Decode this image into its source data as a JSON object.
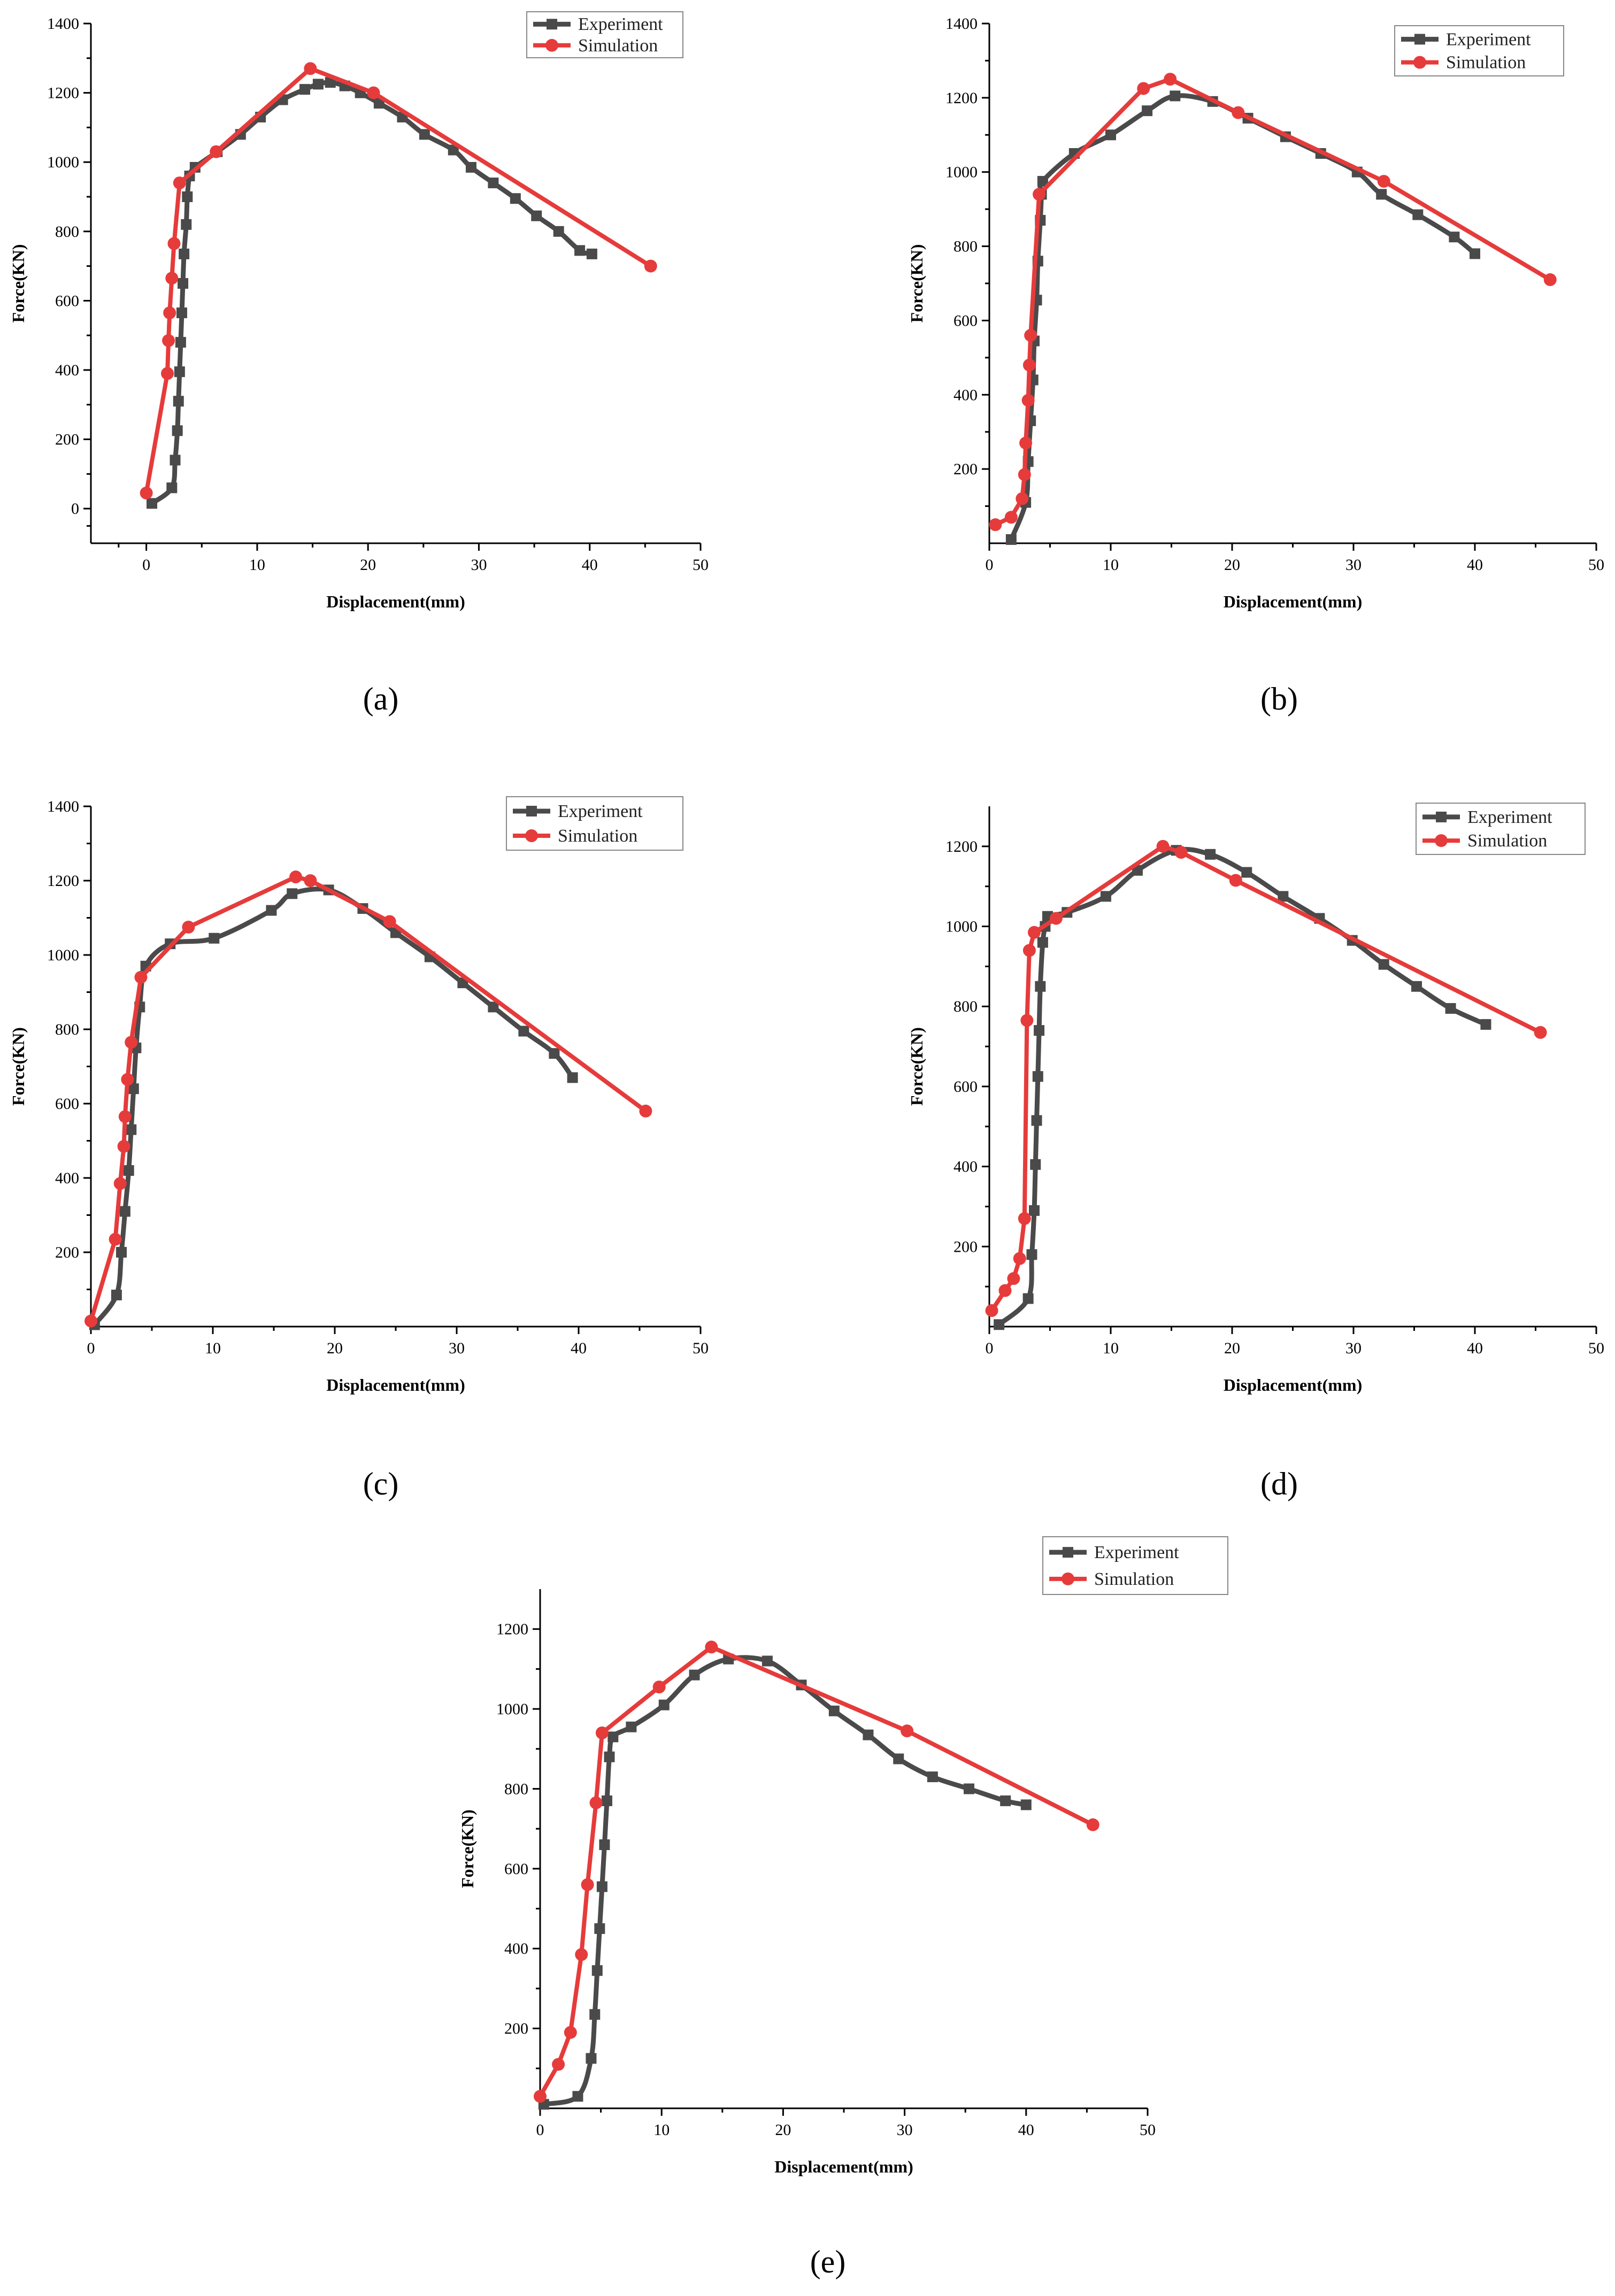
{
  "figure": {
    "colors": {
      "experiment": "#4a4a4a",
      "simulation": "#e63b3b"
    }
  },
  "chart_data": [
    {
      "id": "a",
      "type": "line",
      "panel_label": "(a)",
      "xlabel": "Displacement(mm)",
      "ylabel": "Force(KN)",
      "xlim": [
        -5,
        50
      ],
      "ylim": [
        -100,
        1400
      ],
      "xticks": [
        0,
        10,
        20,
        30,
        40,
        50
      ],
      "yticks": [
        0,
        200,
        400,
        600,
        800,
        1000,
        1200,
        1400
      ],
      "legend": [
        "Experiment",
        "Simulation"
      ],
      "legend_position": "top-right",
      "series": [
        {
          "name": "Experiment",
          "marker": "square",
          "x": [
            0.5,
            2.3,
            2.6,
            2.8,
            2.9,
            3.0,
            3.1,
            3.2,
            3.3,
            3.4,
            3.6,
            3.7,
            3.9,
            4.4,
            6.4,
            8.5,
            10.3,
            12.3,
            14.3,
            15.5,
            16.6,
            17.9,
            19.3,
            21.0,
            23.1,
            25.1,
            27.7,
            29.3,
            31.3,
            33.3,
            35.2,
            37.2,
            39.1,
            40.2
          ],
          "y": [
            15,
            60,
            140,
            225,
            310,
            395,
            480,
            565,
            650,
            735,
            820,
            900,
            960,
            985,
            1030,
            1080,
            1130,
            1180,
            1210,
            1225,
            1230,
            1220,
            1200,
            1170,
            1130,
            1080,
            1035,
            985,
            940,
            895,
            845,
            800,
            745,
            735
          ]
        },
        {
          "name": "Simulation",
          "marker": "circle",
          "x": [
            0.0,
            1.9,
            2.0,
            2.1,
            2.3,
            2.5,
            3.0,
            6.3,
            14.8,
            20.5,
            45.5
          ],
          "y": [
            45,
            390,
            485,
            565,
            665,
            765,
            940,
            1030,
            1270,
            1200,
            700
          ]
        }
      ]
    },
    {
      "id": "b",
      "type": "line",
      "panel_label": "(b)",
      "xlabel": "Displacement(mm)",
      "ylabel": "Force(KN)",
      "xlim": [
        0,
        50
      ],
      "ylim": [
        0,
        1400
      ],
      "xticks": [
        0,
        10,
        20,
        30,
        40,
        50
      ],
      "yticks": [
        200,
        400,
        600,
        800,
        1000,
        1200,
        1400
      ],
      "legend": [
        "Experiment",
        "Simulation"
      ],
      "legend_position": "top-right",
      "series": [
        {
          "name": "Experiment",
          "marker": "square",
          "x": [
            1.8,
            3.0,
            3.2,
            3.4,
            3.6,
            3.7,
            3.9,
            4.0,
            4.2,
            4.3,
            4.4,
            7.0,
            10.0,
            13.0,
            15.3,
            18.4,
            21.3,
            24.4,
            27.3,
            30.3,
            32.3,
            35.3,
            38.3,
            40.0
          ],
          "y": [
            10,
            110,
            220,
            330,
            440,
            545,
            655,
            760,
            870,
            940,
            975,
            1050,
            1100,
            1165,
            1205,
            1190,
            1145,
            1095,
            1050,
            1000,
            940,
            885,
            825,
            780
          ]
        },
        {
          "name": "Simulation",
          "marker": "circle",
          "x": [
            0.5,
            1.8,
            2.7,
            2.9,
            3.0,
            3.2,
            3.3,
            3.4,
            4.1,
            12.7,
            14.9,
            20.5,
            32.5,
            46.2
          ],
          "y": [
            50,
            70,
            120,
            185,
            270,
            385,
            480,
            560,
            940,
            1225,
            1250,
            1160,
            975,
            710
          ]
        }
      ]
    },
    {
      "id": "c",
      "type": "line",
      "panel_label": "(c)",
      "xlabel": "Displacement(mm)",
      "ylabel": "Force(KN)",
      "xlim": [
        0,
        50
      ],
      "ylim": [
        0,
        1400
      ],
      "xticks": [
        0,
        10,
        20,
        30,
        40,
        50
      ],
      "yticks": [
        200,
        400,
        600,
        800,
        1000,
        1200,
        1400
      ],
      "legend": [
        "Experiment",
        "Simulation"
      ],
      "legend_position": "top-right",
      "series": [
        {
          "name": "Experiment",
          "marker": "square",
          "x": [
            0.3,
            2.1,
            2.5,
            2.8,
            3.1,
            3.3,
            3.5,
            3.7,
            4.0,
            4.5,
            6.5,
            10.1,
            14.8,
            16.5,
            19.5,
            22.3,
            25.0,
            27.8,
            30.5,
            33.0,
            35.5,
            38.0,
            39.5
          ],
          "y": [
            5,
            85,
            200,
            310,
            420,
            530,
            640,
            750,
            860,
            970,
            1030,
            1045,
            1120,
            1165,
            1175,
            1125,
            1060,
            995,
            925,
            860,
            795,
            735,
            670
          ]
        },
        {
          "name": "Simulation",
          "marker": "circle",
          "x": [
            0.0,
            2.0,
            2.4,
            2.7,
            2.8,
            3.0,
            3.3,
            4.1,
            8.0,
            16.8,
            18.0,
            24.5,
            45.5
          ],
          "y": [
            15,
            235,
            385,
            485,
            565,
            665,
            765,
            940,
            1075,
            1210,
            1200,
            1090,
            580
          ]
        }
      ]
    },
    {
      "id": "d",
      "type": "line",
      "panel_label": "(d)",
      "xlabel": "Displacement(mm)",
      "ylabel": "Force(KN)",
      "xlim": [
        0,
        50
      ],
      "ylim": [
        0,
        1300
      ],
      "xticks": [
        0,
        10,
        20,
        30,
        40,
        50
      ],
      "yticks": [
        200,
        400,
        600,
        800,
        1000,
        1200
      ],
      "legend": [
        "Experiment",
        "Simulation"
      ],
      "legend_position": "top-right",
      "series": [
        {
          "name": "Experiment",
          "marker": "square",
          "x": [
            0.8,
            3.2,
            3.5,
            3.7,
            3.8,
            3.9,
            4.0,
            4.1,
            4.2,
            4.4,
            4.6,
            4.8,
            6.4,
            9.6,
            12.2,
            15.4,
            18.2,
            21.2,
            24.2,
            27.2,
            29.9,
            32.5,
            35.2,
            38.0,
            40.9
          ],
          "y": [
            5,
            70,
            180,
            290,
            405,
            515,
            625,
            740,
            850,
            960,
            1000,
            1025,
            1035,
            1075,
            1140,
            1190,
            1180,
            1135,
            1075,
            1020,
            965,
            905,
            850,
            795,
            755
          ]
        },
        {
          "name": "Simulation",
          "marker": "circle",
          "x": [
            0.2,
            1.3,
            2.0,
            2.5,
            2.9,
            3.1,
            3.3,
            3.7,
            5.5,
            14.3,
            15.8,
            20.3,
            45.4
          ],
          "y": [
            40,
            90,
            120,
            170,
            270,
            765,
            940,
            985,
            1020,
            1200,
            1185,
            1115,
            735
          ]
        }
      ]
    },
    {
      "id": "e",
      "type": "line",
      "panel_label": "(e)",
      "xlabel": "Displacement(mm)",
      "ylabel": "Force(KN)",
      "xlim": [
        0,
        50
      ],
      "ylim": [
        0,
        1300
      ],
      "xticks": [
        0,
        10,
        20,
        30,
        40,
        50
      ],
      "yticks": [
        200,
        400,
        600,
        800,
        1000,
        1200
      ],
      "legend": [
        "Experiment",
        "Simulation"
      ],
      "legend_position": "top",
      "series": [
        {
          "name": "Experiment",
          "marker": "square",
          "x": [
            0.3,
            3.1,
            4.2,
            4.5,
            4.7,
            4.9,
            5.1,
            5.3,
            5.5,
            5.7,
            6.0,
            7.5,
            10.2,
            12.7,
            15.5,
            18.7,
            21.5,
            24.2,
            27.0,
            29.5,
            32.3,
            35.3,
            38.3,
            40.0
          ],
          "y": [
            10,
            30,
            125,
            235,
            345,
            450,
            555,
            660,
            770,
            880,
            930,
            955,
            1010,
            1085,
            1125,
            1120,
            1060,
            995,
            935,
            875,
            830,
            800,
            770,
            760
          ]
        },
        {
          "name": "Simulation",
          "marker": "circle",
          "x": [
            0.0,
            1.5,
            2.5,
            3.4,
            3.9,
            4.6,
            5.1,
            9.8,
            14.1,
            30.2,
            45.5
          ],
          "y": [
            30,
            110,
            190,
            385,
            560,
            765,
            940,
            1055,
            1155,
            945,
            710
          ]
        }
      ]
    }
  ]
}
